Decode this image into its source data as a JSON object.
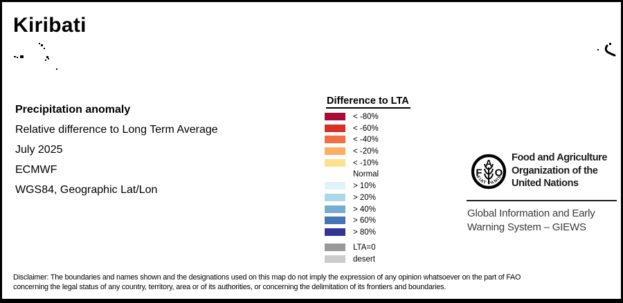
{
  "title": "Kiribati",
  "info_block": {
    "heading": "Precipitation anomaly",
    "lines": [
      "Relative difference to Long Term Average",
      "July 2025",
      "ECMWF",
      "WGS84, Geographic Lat/Lon"
    ]
  },
  "legend": {
    "title": "Difference to LTA",
    "rows": [
      {
        "label": "< -80%",
        "color": "#A80B35"
      },
      {
        "label": "< -60%",
        "color": "#D73027"
      },
      {
        "label": "< -40%",
        "color": "#F46D43"
      },
      {
        "label": "< -20%",
        "color": "#FDAE61"
      },
      {
        "label": "< -10%",
        "color": "#FEE090"
      },
      {
        "label": "Normal",
        "color": "#FFFFFF"
      },
      {
        "label": "> 10%",
        "color": "#E0F3F8"
      },
      {
        "label": "> 20%",
        "color": "#ABD9E9"
      },
      {
        "label": "> 40%",
        "color": "#74ADD1"
      },
      {
        "label": "> 60%",
        "color": "#4575B4"
      },
      {
        "label": "> 80%",
        "color": "#313695"
      },
      {
        "label": "LTA=0",
        "color": "#999999",
        "gap_before": true
      },
      {
        "label": "desert",
        "color": "#CCCCCC"
      }
    ]
  },
  "fao": {
    "logo_letters": [
      "F",
      "A",
      "O"
    ],
    "logo_motto": "FIAT PANIS",
    "org_name_lines": [
      "Food and Agriculture",
      "Organization of the",
      "United Nations"
    ],
    "giews_lines": [
      "Global Information and Early",
      "Warning System – GIEWS"
    ]
  },
  "disclaimer": {
    "lines": [
      "Disclaimer: The boundaries and names shown and the designations used on this map do not imply the expression of any opinion whatsoever on the part of FAO",
      "concerning the legal status of any country, territory, area or of its authorities, or concerning the delimitation of its frontiers and boundaries."
    ]
  },
  "map": {
    "island_dots": [
      [
        53,
        59,
        2,
        2
      ],
      [
        56,
        61,
        3,
        3
      ],
      [
        60,
        66,
        2,
        2
      ],
      [
        17,
        78,
        3,
        2
      ],
      [
        21,
        79,
        2,
        2
      ],
      [
        26,
        77,
        5,
        4
      ],
      [
        64,
        78,
        3,
        3
      ],
      [
        66,
        81,
        2,
        2
      ],
      [
        62,
        83,
        2,
        2
      ],
      [
        78,
        96,
        2,
        2
      ],
      [
        877,
        59,
        3,
        3
      ],
      [
        860,
        68,
        2,
        2
      ]
    ]
  }
}
